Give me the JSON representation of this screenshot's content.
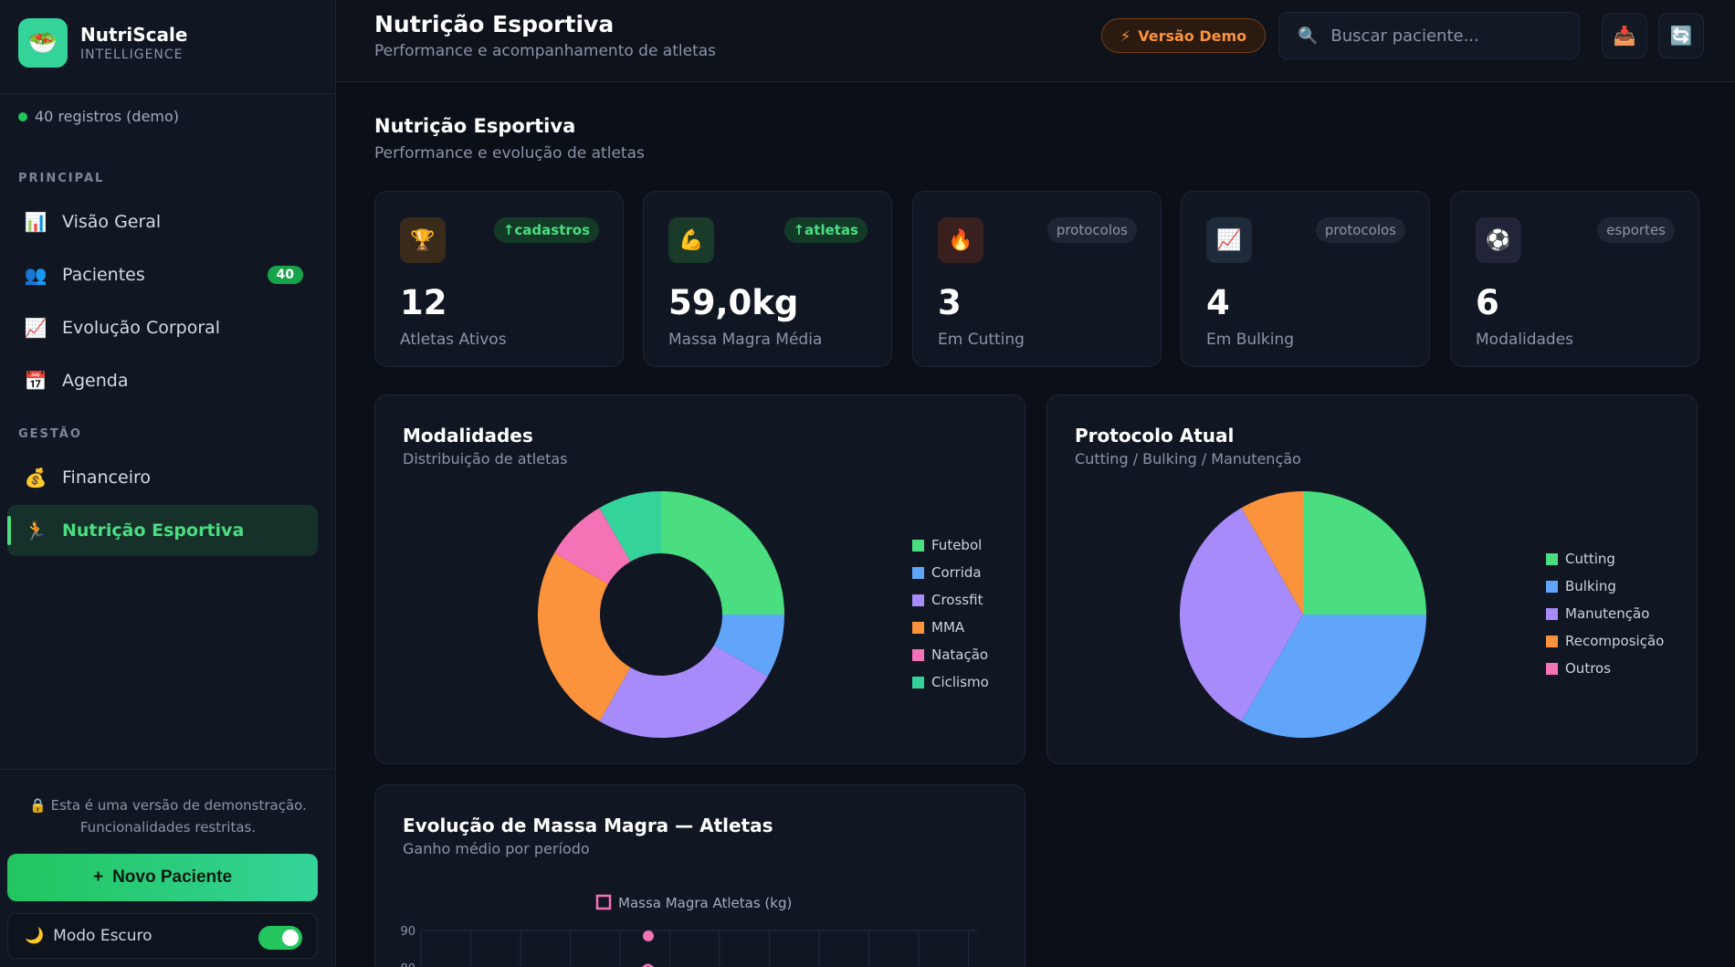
{
  "brand": {
    "name": "NutriScale",
    "sub": "INTELLIGENCE",
    "logo_icon": "salad-bowl-icon"
  },
  "records": "40 registros (demo)",
  "nav": {
    "section_main": "PRINCIPAL",
    "section_mgmt": "GESTÃO",
    "items": [
      {
        "label": "Visão Geral",
        "icon": "bar-chart-icon",
        "glyph": "📊"
      },
      {
        "label": "Pacientes",
        "icon": "users-icon",
        "glyph": "👥",
        "badge": "40"
      },
      {
        "label": "Evolução Corporal",
        "icon": "trend-up-icon",
        "glyph": "📈"
      },
      {
        "label": "Agenda",
        "icon": "calendar-icon",
        "glyph": "📅"
      },
      {
        "label": "Financeiro",
        "icon": "money-bag-icon",
        "glyph": "💰"
      },
      {
        "label": "Nutrição Esportiva",
        "icon": "runner-icon",
        "glyph": "🏃"
      }
    ]
  },
  "demo_note": {
    "line1": "Esta é uma versão de demonstração.",
    "line2": "Funcionalidades restritas."
  },
  "new_patient": "Novo Paciente",
  "dark_mode": "Modo Escuro",
  "header": {
    "title": "Nutrição Esportiva",
    "subtitle": "Performance e acompanhamento de atletas",
    "demo_badge": "Versão Demo",
    "search_placeholder": "Buscar paciente..."
  },
  "page": {
    "title": "Nutrição Esportiva",
    "subtitle": "Performance e evolução de atletas"
  },
  "stats": [
    {
      "value": "12",
      "label": "Atletas Ativos",
      "tag": "↑cadastros",
      "glyph": "🏆",
      "icon": "trophy-icon",
      "tag_style": "green",
      "bg": "#3a2a1a"
    },
    {
      "value": "59,0kg",
      "label": "Massa Magra Média",
      "tag": "↑atletas",
      "glyph": "💪",
      "icon": "flexed-biceps-icon",
      "tag_style": "green",
      "bg": "#1a3a2a"
    },
    {
      "value": "3",
      "label": "Em Cutting",
      "tag": "protocolos",
      "glyph": "🔥",
      "icon": "fire-icon",
      "tag_style": "gray",
      "bg": "#3a1f1f"
    },
    {
      "value": "4",
      "label": "Em Bulking",
      "tag": "protocolos",
      "glyph": "📈",
      "icon": "chart-up-icon",
      "tag_style": "gray",
      "bg": "#1f2a3a"
    },
    {
      "value": "6",
      "label": "Modalidades",
      "tag": "esportes",
      "glyph": "⚽",
      "icon": "ball-icon",
      "tag_style": "gray",
      "bg": "#22243a"
    }
  ],
  "charts": {
    "modalidades": {
      "title": "Modalidades",
      "subtitle": "Distribuição de atletas"
    },
    "protocolo": {
      "title": "Protocolo Atual",
      "subtitle": "Cutting / Bulking / Manutenção"
    },
    "massa": {
      "title": "Evolução de Massa Magra — Atletas",
      "subtitle": "Ganho médio por período"
    }
  },
  "chart_data": [
    {
      "type": "pie",
      "variant": "doughnut",
      "categories": [
        "Futebol",
        "Corrida",
        "Crossfit",
        "MMA",
        "Natação",
        "Ciclismo"
      ],
      "values": [
        3,
        1,
        3,
        3,
        1,
        1
      ],
      "colors": [
        "#4ade80",
        "#60a5fa",
        "#a78bfa",
        "#fb923c",
        "#f472b6",
        "#34d399"
      ],
      "legend": "right"
    },
    {
      "type": "pie",
      "categories": [
        "Cutting",
        "Bulking",
        "Manutenção",
        "Recomposição",
        "Outros"
      ],
      "values": [
        3,
        4,
        4,
        1,
        0
      ],
      "colors": [
        "#4ade80",
        "#60a5fa",
        "#a78bfa",
        "#fb923c",
        "#f472b6"
      ],
      "legend": "right"
    },
    {
      "type": "line",
      "series": [
        {
          "name": "Massa Magra Atletas (kg)",
          "color": "#f472b6"
        }
      ],
      "y_ticks": [
        "90",
        "80"
      ],
      "ylim": [
        0,
        90
      ],
      "legend": "top",
      "grid": true
    }
  ]
}
